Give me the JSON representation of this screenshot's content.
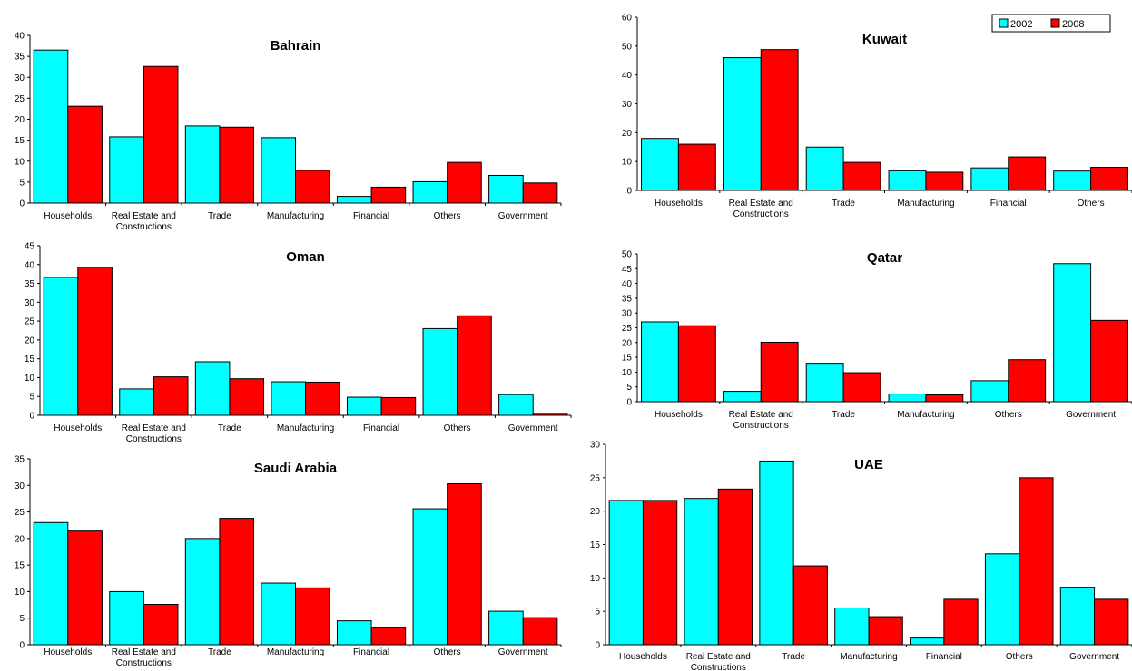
{
  "legend": {
    "entries": [
      {
        "name": "2002",
        "color": "#00FFFF"
      },
      {
        "name": "2008",
        "color": "#FF0000"
      }
    ],
    "placement": "top-right"
  },
  "chart_data": [
    {
      "type": "bar",
      "title": "Bahrain",
      "categories": [
        "Households",
        "Real Estate and\nConstructions",
        "Trade",
        "Manufacturing",
        "Financial",
        "Others",
        "Government"
      ],
      "series": [
        {
          "name": "2002",
          "values": [
            36.5,
            15.8,
            18.4,
            15.6,
            1.6,
            5.1,
            6.6
          ]
        },
        {
          "name": "2008",
          "values": [
            23.1,
            32.6,
            18.1,
            7.8,
            3.8,
            9.7,
            4.8
          ]
        }
      ],
      "ylim": [
        0,
        40
      ],
      "yticks": [
        0,
        5,
        10,
        15,
        20,
        25,
        30,
        35,
        40
      ]
    },
    {
      "type": "bar",
      "title": "Kuwait",
      "categories": [
        "Households",
        "Real Estate and\nConstructions",
        "Trade",
        "Manufacturing",
        "Financial",
        "Others"
      ],
      "series": [
        {
          "name": "2002",
          "values": [
            18.0,
            46.0,
            15.0,
            6.8,
            7.8,
            6.7
          ]
        },
        {
          "name": "2008",
          "values": [
            16.0,
            48.8,
            9.7,
            6.3,
            11.6,
            8.0
          ]
        }
      ],
      "ylim": [
        0,
        60
      ],
      "yticks": [
        0,
        10,
        20,
        30,
        40,
        50,
        60
      ]
    },
    {
      "type": "bar",
      "title": "Oman",
      "categories": [
        "Households",
        "Real Estate and\nConstructions",
        "Trade",
        "Manufacturing",
        "Financial",
        "Others",
        "Government"
      ],
      "series": [
        {
          "name": "2002",
          "values": [
            36.6,
            7.0,
            14.2,
            8.9,
            4.8,
            23.0,
            5.5
          ]
        },
        {
          "name": "2008",
          "values": [
            39.3,
            10.2,
            9.7,
            8.8,
            4.7,
            26.4,
            0.6
          ]
        }
      ],
      "ylim": [
        0,
        45
      ],
      "yticks": [
        0,
        5,
        10,
        15,
        20,
        25,
        30,
        35,
        40,
        45
      ]
    },
    {
      "type": "bar",
      "title": "Qatar",
      "categories": [
        "Households",
        "Real Estate and\nConstructions",
        "Trade",
        "Manufacturing",
        "Others",
        "Government"
      ],
      "series": [
        {
          "name": "2002",
          "values": [
            27.0,
            3.5,
            13.0,
            2.6,
            7.1,
            46.7
          ]
        },
        {
          "name": "2008",
          "values": [
            25.7,
            20.1,
            9.8,
            2.3,
            14.2,
            27.5
          ]
        }
      ],
      "ylim": [
        0,
        50
      ],
      "yticks": [
        0,
        5,
        10,
        15,
        20,
        25,
        30,
        35,
        40,
        45,
        50
      ]
    },
    {
      "type": "bar",
      "title": "Saudi Arabia",
      "categories": [
        "Households",
        "Real Estate and\nConstructions",
        "Trade",
        "Manufacturing",
        "Financial",
        "Others",
        "Government"
      ],
      "series": [
        {
          "name": "2002",
          "values": [
            23.0,
            10.0,
            20.0,
            11.6,
            4.5,
            25.6,
            6.3
          ]
        },
        {
          "name": "2008",
          "values": [
            21.4,
            7.6,
            23.8,
            10.7,
            3.2,
            30.3,
            5.1
          ]
        }
      ],
      "ylim": [
        0,
        35
      ],
      "yticks": [
        0,
        5,
        10,
        15,
        20,
        25,
        30,
        35
      ]
    },
    {
      "type": "bar",
      "title": "UAE",
      "categories": [
        "Households",
        "Real Estate and\nConstructions",
        "Trade",
        "Manufacturing",
        "Financial",
        "Others",
        "Government"
      ],
      "series": [
        {
          "name": "2002",
          "values": [
            21.6,
            21.9,
            27.5,
            5.5,
            1.0,
            13.6,
            8.6
          ]
        },
        {
          "name": "2008",
          "values": [
            21.6,
            23.3,
            11.8,
            4.2,
            6.8,
            25.0,
            6.8
          ]
        }
      ],
      "ylim": [
        0,
        30
      ],
      "yticks": [
        0,
        5,
        10,
        15,
        20,
        25,
        30
      ]
    }
  ]
}
